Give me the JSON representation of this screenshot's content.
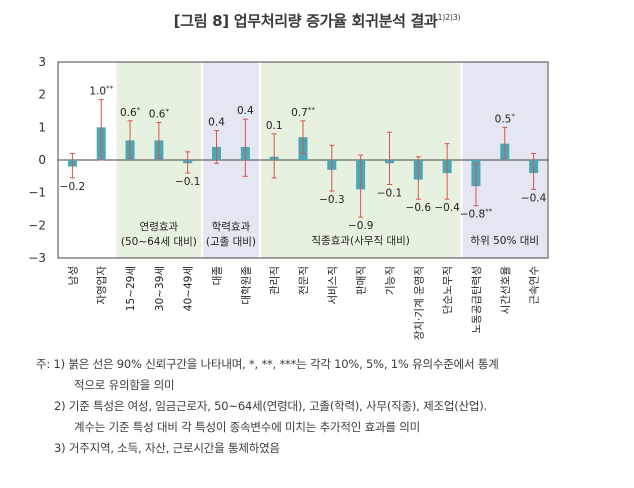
{
  "title": {
    "text": "[그림 8] 업무처리량 증가율 회귀분석 결과",
    "superscript": "1)2)3)"
  },
  "chart_data": {
    "type": "bar",
    "ylim": [
      -3,
      3
    ],
    "yticks": [
      "3",
      "2",
      "1",
      "0",
      "−1",
      "−2",
      "−3"
    ],
    "categories": [
      "남성",
      "자영업자",
      "15~29세",
      "30~39세",
      "40~49세",
      "대졸",
      "대학원졸",
      "관리직",
      "전문직",
      "서비스직",
      "판매직",
      "기능직",
      "장치·기계 운영직",
      "단순노무직",
      "노동공급탄력성",
      "시간선호율",
      "근속연수"
    ],
    "values": [
      -0.2,
      1.0,
      0.6,
      0.6,
      -0.1,
      0.4,
      0.4,
      0.1,
      0.7,
      -0.3,
      -0.9,
      -0.1,
      -0.6,
      -0.4,
      -0.8,
      0.5,
      -0.4
    ],
    "value_labels": [
      "−0.2",
      "1.0**",
      "0.6*",
      "0.6*",
      "−0.1",
      "0.4",
      "0.4",
      "0.1",
      "0.7**",
      "−0.3",
      "−0.9",
      "−0.1",
      "−0.6",
      "−0.4",
      "−0.8**",
      "0.5*",
      "−0.4"
    ],
    "ci_low": [
      -0.55,
      0.0,
      0.05,
      0.05,
      -0.4,
      -0.1,
      -0.5,
      -0.55,
      0.2,
      -0.95,
      -1.75,
      -0.75,
      -1.2,
      -1.2,
      -1.4,
      0.05,
      -0.9
    ],
    "ci_high": [
      0.2,
      1.85,
      1.2,
      1.15,
      0.25,
      0.9,
      1.25,
      0.8,
      1.2,
      0.45,
      0.15,
      0.85,
      0.1,
      0.5,
      -0.1,
      1.0,
      0.2
    ],
    "groups": [
      {
        "label_line1": "연령효과",
        "label_line2": "(50~64세 대비)",
        "start": 2,
        "end": 4,
        "color": "#e6f2df"
      },
      {
        "label_line1": "학력효과",
        "label_line2": "(고졸 대비)",
        "start": 5,
        "end": 6,
        "color": "#e4e6f2"
      },
      {
        "label_line1": "직종효과(사무직 대비)",
        "label_line2": "",
        "start": 7,
        "end": 13,
        "color": "#e6f2df"
      },
      {
        "label_line1": "하위 50% 대비",
        "label_line2": "",
        "start": 14,
        "end": 16,
        "color": "#e4e6f2"
      }
    ],
    "colors": {
      "bar": "#4aa8b4",
      "ci": "#d9534f",
      "axis": "#444444"
    }
  },
  "notes": {
    "line1": "주:  1) 붉은 선은 90% 신뢰구간을 나타내며, *, **, ***는 각각 10%, 5%, 1% 유의수준에서 통계",
    "line2": "적으로 유의함을 의미",
    "line3": "2) 기준 특성은 여성, 임금근로자, 50~64세(연령대), 고졸(학력), 사무(직종), 제조업(산업).",
    "line4": "계수는 기준 특성 대비 각 특성이 종속변수에 미치는 추가적인 효과를 의미",
    "line5": "3) 거주지역, 소득, 자산, 근로시간을 통제하였음"
  }
}
